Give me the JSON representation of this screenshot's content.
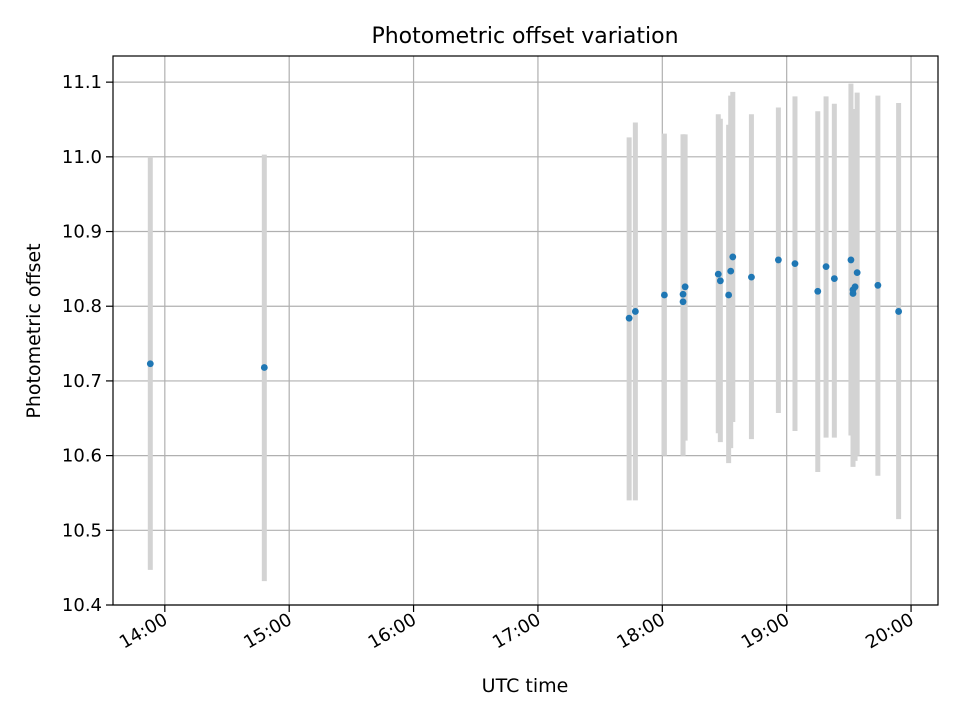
{
  "chart_data": {
    "type": "scatter",
    "title": "Photometric offset variation",
    "xlabel": "UTC time",
    "ylabel": "Photometric offset",
    "x_is_time": true,
    "xlim": [
      "13:35",
      "20:13"
    ],
    "ylim": [
      10.4,
      11.135
    ],
    "grid": true,
    "legend": "none",
    "x_ticks": [
      "14:00",
      "15:00",
      "16:00",
      "17:00",
      "18:00",
      "19:00",
      "20:00"
    ],
    "y_ticks": [
      "10.4",
      "10.5",
      "10.6",
      "10.7",
      "10.8",
      "10.9",
      "11.0",
      "11.1"
    ],
    "colors": {
      "point": "#1f77b4",
      "errorbar": "#d3d3d3",
      "grid": "#b0b0b0"
    },
    "points": [
      {
        "x": "13:53",
        "y": 10.723,
        "y_low": 10.447,
        "y_high": 11.0
      },
      {
        "x": "14:48",
        "y": 10.718,
        "y_low": 10.432,
        "y_high": 11.003
      },
      {
        "x": "17:44",
        "y": 10.784,
        "y_low": 10.54,
        "y_high": 11.026
      },
      {
        "x": "17:47",
        "y": 10.793,
        "y_low": 10.54,
        "y_high": 11.046
      },
      {
        "x": "18:01",
        "y": 10.815,
        "y_low": 10.6,
        "y_high": 11.031
      },
      {
        "x": "18:10",
        "y": 10.816,
        "y_low": 10.6,
        "y_high": 11.03
      },
      {
        "x": "18:10",
        "y": 10.806,
        "y_low": 10.6,
        "y_high": 11.03
      },
      {
        "x": "18:11",
        "y": 10.826,
        "y_low": 10.62,
        "y_high": 11.03
      },
      {
        "x": "18:27",
        "y": 10.843,
        "y_low": 10.63,
        "y_high": 11.057
      },
      {
        "x": "18:28",
        "y": 10.834,
        "y_low": 10.618,
        "y_high": 11.051
      },
      {
        "x": "18:32",
        "y": 10.815,
        "y_low": 10.59,
        "y_high": 11.043
      },
      {
        "x": "18:33",
        "y": 10.847,
        "y_low": 10.61,
        "y_high": 11.082
      },
      {
        "x": "18:34",
        "y": 10.866,
        "y_low": 10.645,
        "y_high": 11.087
      },
      {
        "x": "18:43",
        "y": 10.839,
        "y_low": 10.622,
        "y_high": 11.057
      },
      {
        "x": "18:56",
        "y": 10.862,
        "y_low": 10.657,
        "y_high": 11.066
      },
      {
        "x": "19:04",
        "y": 10.857,
        "y_low": 10.633,
        "y_high": 11.081
      },
      {
        "x": "19:15",
        "y": 10.82,
        "y_low": 10.578,
        "y_high": 11.061
      },
      {
        "x": "19:19",
        "y": 10.853,
        "y_low": 10.624,
        "y_high": 11.081
      },
      {
        "x": "19:23",
        "y": 10.837,
        "y_low": 10.624,
        "y_high": 11.071
      },
      {
        "x": "19:31",
        "y": 10.862,
        "y_low": 10.627,
        "y_high": 11.098
      },
      {
        "x": "19:32",
        "y": 10.822,
        "y_low": 10.585,
        "y_high": 11.064
      },
      {
        "x": "19:32",
        "y": 10.817,
        "y_low": 10.587,
        "y_high": 11.062
      },
      {
        "x": "19:33",
        "y": 10.826,
        "y_low": 10.593,
        "y_high": 11.059
      },
      {
        "x": "19:34",
        "y": 10.845,
        "y_low": 10.6,
        "y_high": 11.086
      },
      {
        "x": "19:44",
        "y": 10.828,
        "y_low": 10.573,
        "y_high": 11.082
      },
      {
        "x": "19:54",
        "y": 10.793,
        "y_low": 10.515,
        "y_high": 11.072
      }
    ]
  }
}
